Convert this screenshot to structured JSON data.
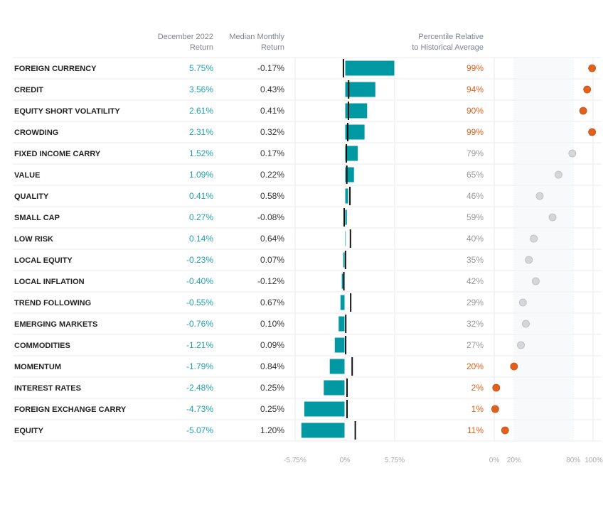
{
  "chart_data": {
    "type": "bar",
    "headers": {
      "return_line1": "December 2022",
      "return_line2": "Return",
      "median_line1": "Median Monthly",
      "median_line2": "Return",
      "percentile_line1": "Percentile Relative",
      "percentile_line2": "to Historical Average"
    },
    "return_axis": {
      "min": -5.75,
      "max": 5.75,
      "ticks": [
        "-5.75%",
        "0%",
        "5.75%"
      ],
      "tick_values": [
        -5.75,
        0,
        5.75
      ]
    },
    "percentile_axis": {
      "min": 0,
      "max": 100,
      "ticks": [
        "0%",
        "20%",
        "80%",
        "100%"
      ],
      "tick_values": [
        0,
        20,
        80,
        100
      ],
      "band": [
        20,
        80
      ]
    },
    "colors": {
      "bar": "#0099a3",
      "highlight": "#e0601c",
      "neutral_dot": "#d4d6da",
      "neutral_text": "#999999",
      "return_text": "#1fa0a8",
      "median_marker": "#111111",
      "band": "#f7f9fb"
    },
    "rows": [
      {
        "name": "FOREIGN CURRENCY",
        "ret": 5.75,
        "ret_label": "5.75%",
        "median": -0.17,
        "median_label": "-0.17%",
        "pct": 99,
        "pct_label": "99%",
        "highlight": true
      },
      {
        "name": "CREDIT",
        "ret": 3.56,
        "ret_label": "3.56%",
        "median": 0.43,
        "median_label": "0.43%",
        "pct": 94,
        "pct_label": "94%",
        "highlight": true
      },
      {
        "name": "EQUITY SHORT VOLATILITY",
        "ret": 2.61,
        "ret_label": "2.61%",
        "median": 0.41,
        "median_label": "0.41%",
        "pct": 90,
        "pct_label": "90%",
        "highlight": true
      },
      {
        "name": "CROWDING",
        "ret": 2.31,
        "ret_label": "2.31%",
        "median": 0.32,
        "median_label": "0.32%",
        "pct": 99,
        "pct_label": "99%",
        "highlight": true
      },
      {
        "name": "FIXED INCOME CARRY",
        "ret": 1.52,
        "ret_label": "1.52%",
        "median": 0.17,
        "median_label": "0.17%",
        "pct": 79,
        "pct_label": "79%",
        "highlight": false
      },
      {
        "name": "VALUE",
        "ret": 1.09,
        "ret_label": "1.09%",
        "median": 0.22,
        "median_label": "0.22%",
        "pct": 65,
        "pct_label": "65%",
        "highlight": false
      },
      {
        "name": "QUALITY",
        "ret": 0.41,
        "ret_label": "0.41%",
        "median": 0.58,
        "median_label": "0.58%",
        "pct": 46,
        "pct_label": "46%",
        "highlight": false
      },
      {
        "name": "SMALL CAP",
        "ret": 0.27,
        "ret_label": "0.27%",
        "median": -0.08,
        "median_label": "-0.08%",
        "pct": 59,
        "pct_label": "59%",
        "highlight": false
      },
      {
        "name": "LOW RISK",
        "ret": 0.14,
        "ret_label": "0.14%",
        "median": 0.64,
        "median_label": "0.64%",
        "pct": 40,
        "pct_label": "40%",
        "highlight": false
      },
      {
        "name": "LOCAL EQUITY",
        "ret": -0.23,
        "ret_label": "-0.23%",
        "median": 0.07,
        "median_label": "0.07%",
        "pct": 35,
        "pct_label": "35%",
        "highlight": false
      },
      {
        "name": "LOCAL INFLATION",
        "ret": -0.4,
        "ret_label": "-0.40%",
        "median": -0.12,
        "median_label": "-0.12%",
        "pct": 42,
        "pct_label": "42%",
        "highlight": false
      },
      {
        "name": "TREND FOLLOWING",
        "ret": -0.55,
        "ret_label": "-0.55%",
        "median": 0.67,
        "median_label": "0.67%",
        "pct": 29,
        "pct_label": "29%",
        "highlight": false
      },
      {
        "name": "EMERGING MARKETS",
        "ret": -0.76,
        "ret_label": "-0.76%",
        "median": 0.1,
        "median_label": "0.10%",
        "pct": 32,
        "pct_label": "32%",
        "highlight": false
      },
      {
        "name": "COMMODITIES",
        "ret": -1.21,
        "ret_label": "-1.21%",
        "median": 0.09,
        "median_label": "0.09%",
        "pct": 27,
        "pct_label": "27%",
        "highlight": false
      },
      {
        "name": "MOMENTUM",
        "ret": -1.79,
        "ret_label": "-1.79%",
        "median": 0.84,
        "median_label": "0.84%",
        "pct": 20,
        "pct_label": "20%",
        "highlight": true
      },
      {
        "name": "INTEREST RATES",
        "ret": -2.48,
        "ret_label": "-2.48%",
        "median": 0.25,
        "median_label": "0.25%",
        "pct": 2,
        "pct_label": "2%",
        "highlight": true
      },
      {
        "name": "FOREIGN EXCHANGE CARRY",
        "ret": -4.73,
        "ret_label": "-4.73%",
        "median": 0.25,
        "median_label": "0.25%",
        "pct": 1,
        "pct_label": "1%",
        "highlight": true
      },
      {
        "name": "EQUITY",
        "ret": -5.07,
        "ret_label": "-5.07%",
        "median": 1.2,
        "median_label": "1.20%",
        "pct": 11,
        "pct_label": "11%",
        "highlight": true
      }
    ]
  }
}
